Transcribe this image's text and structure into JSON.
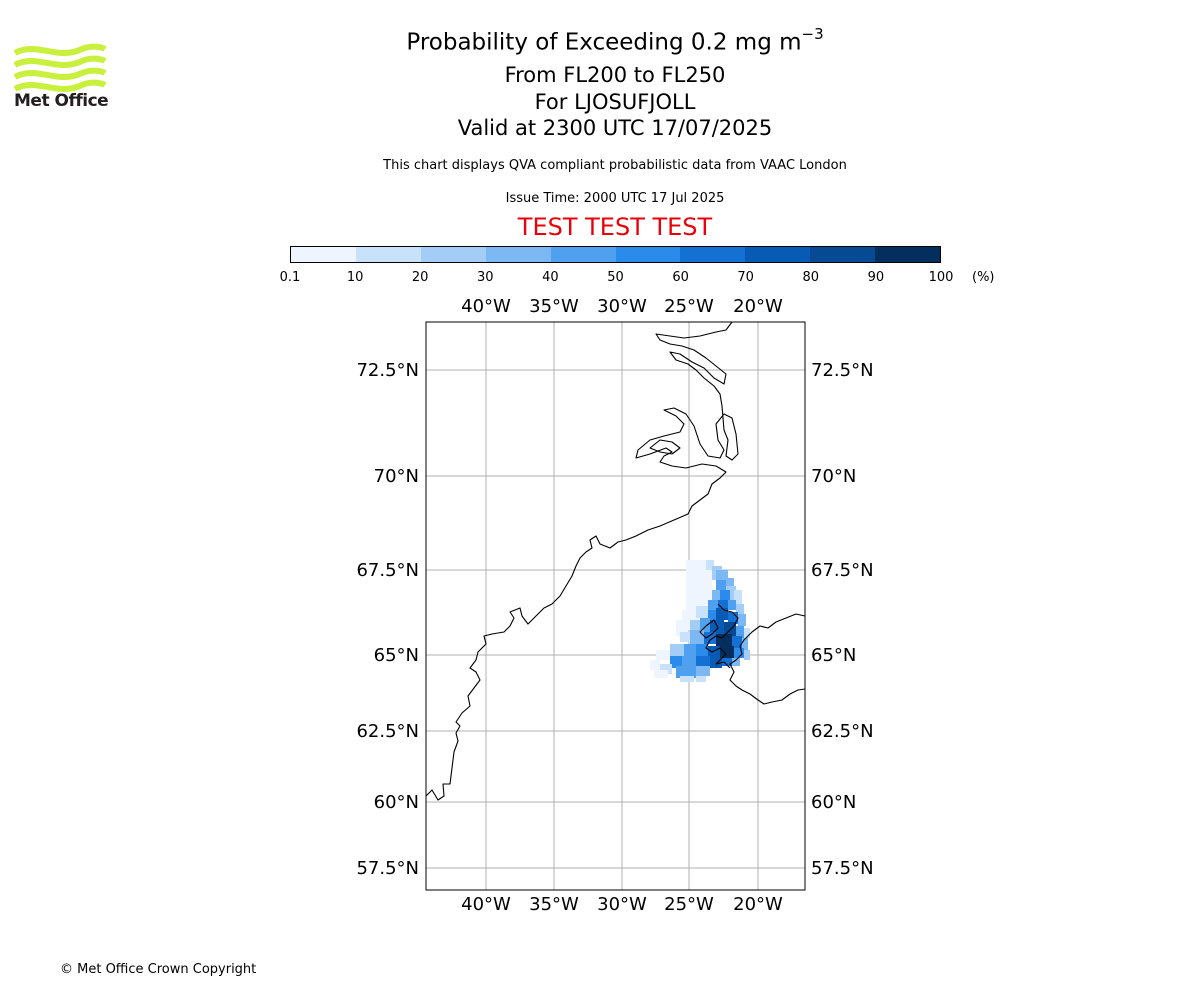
{
  "logo": {
    "text": "Met Office",
    "color": "#c8f03c"
  },
  "title": {
    "main": "Probability of Exceeding 0.2 mg m",
    "exponent": "−3"
  },
  "subtitles": [
    "From FL200 to FL250",
    "For LJOSUFJOLL",
    "Valid at 2300 UTC 17/07/2025"
  ],
  "disclaimer": "This chart displays QVA compliant probabilistic data from VAAC London",
  "issue_time": "Issue Time: 2000 UTC 17 Jul 2025",
  "test_banner": "TEST TEST TEST",
  "colorbar": {
    "ticks": [
      "0.1",
      "10",
      "20",
      "30",
      "40",
      "50",
      "60",
      "70",
      "80",
      "90",
      "100"
    ],
    "unit": "(%)",
    "colors": [
      "#eef5fe",
      "#c9e2fb",
      "#a3cdf7",
      "#7cb8f3",
      "#4fa0ef",
      "#2a8bea",
      "#1470d2",
      "#085bb4",
      "#054a92",
      "#032e5d"
    ]
  },
  "map": {
    "lon_ticks": [
      "40°W",
      "35°W",
      "30°W",
      "25°W",
      "20°W"
    ],
    "lat_ticks": [
      "72.5°N",
      "70°N",
      "67.5°N",
      "65°N",
      "62.5°N",
      "60°N",
      "57.5°N"
    ],
    "gridline_color": "#b0b0b0",
    "coastline_color": "#000000"
  },
  "copyright": "© Met Office Crown Copyright"
}
